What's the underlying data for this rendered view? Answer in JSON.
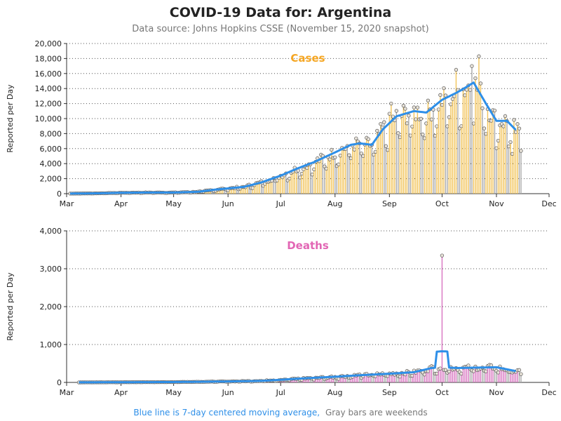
{
  "title": "COVID-19 Data for: Argentina",
  "subtitle": "Data source: Johns Hopkins CSSE (November 15, 2020 snapshot)",
  "footnote": {
    "blue_part": "Blue line is 7-day centered moving average,",
    "gray_part": "Gray bars are weekends"
  },
  "colors": {
    "cases": "#f5a623",
    "cases_bar": "#f2c45a",
    "deaths": "#e266b4",
    "deaths_bar": "#d874c0",
    "moving_average": "#2e8fe8",
    "weekend_bar": "#aaaaaa",
    "point_fill": "#e8e2d8",
    "grid": "#555555"
  },
  "chart_data": [
    {
      "type": "bar",
      "title": "Cases",
      "ylabel": "Reported per Day",
      "xlim": [
        "2020-03-01",
        "2020-12-01"
      ],
      "ylim": [
        0,
        20000
      ],
      "yticks": [
        "0",
        "2,000",
        "4,000",
        "6,000",
        "8,000",
        "10,000",
        "12,000",
        "14,000",
        "16,000",
        "18,000",
        "20,000"
      ],
      "xticks": [
        "Mar",
        "Apr",
        "May",
        "Jun",
        "Jul",
        "Aug",
        "Sep",
        "Oct",
        "Nov",
        "Dec"
      ],
      "grid": "horizontal dotted",
      "start_date": "2020-03-03",
      "anchors": [
        [
          "2020-03-03",
          10
        ],
        [
          "2020-03-20",
          50
        ],
        [
          "2020-04-01",
          120
        ],
        [
          "2020-04-15",
          150
        ],
        [
          "2020-05-01",
          150
        ],
        [
          "2020-05-15",
          250
        ],
        [
          "2020-05-25",
          550
        ],
        [
          "2020-06-01",
          700
        ],
        [
          "2020-06-10",
          900
        ],
        [
          "2020-06-20",
          1500
        ],
        [
          "2020-07-01",
          2400
        ],
        [
          "2020-07-10",
          3300
        ],
        [
          "2020-07-20",
          4200
        ],
        [
          "2020-08-01",
          5500
        ],
        [
          "2020-08-10",
          6500
        ],
        [
          "2020-08-15",
          6700
        ],
        [
          "2020-08-22",
          6500
        ],
        [
          "2020-08-28",
          8500
        ],
        [
          "2020-09-05",
          10300
        ],
        [
          "2020-09-15",
          11000
        ],
        [
          "2020-09-22",
          10800
        ],
        [
          "2020-10-01",
          12500
        ],
        [
          "2020-10-08",
          13300
        ],
        [
          "2020-10-12",
          13800
        ],
        [
          "2020-10-19",
          14800
        ],
        [
          "2020-10-26",
          12000
        ],
        [
          "2020-11-01",
          9700
        ],
        [
          "2020-11-07",
          9700
        ],
        [
          "2020-11-14",
          8000
        ]
      ],
      "annotated_points": [
        [
          "2020-10-22",
          18300
        ],
        [
          "2020-10-09",
          16500
        ],
        [
          "2020-10-18",
          17000
        ],
        [
          "2020-09-02",
          12000
        ],
        [
          "2020-11-10",
          5300
        ],
        [
          "2020-11-15",
          5700
        ]
      ],
      "moving_average_end": "2020-11-12"
    },
    {
      "type": "bar",
      "title": "Deaths",
      "ylabel": "Reported per Day",
      "xlim": [
        "2020-03-01",
        "2020-12-01"
      ],
      "ylim": [
        0,
        4000
      ],
      "yticks": [
        "0",
        "1,000",
        "2,000",
        "3,000",
        "4,000"
      ],
      "xticks": [
        "Mar",
        "Apr",
        "May",
        "Jun",
        "Jul",
        "Aug",
        "Sep",
        "Oct",
        "Nov",
        "Dec"
      ],
      "grid": "horizontal dotted",
      "start_date": "2020-03-08",
      "anchors": [
        [
          "2020-03-08",
          1
        ],
        [
          "2020-04-01",
          5
        ],
        [
          "2020-05-01",
          10
        ],
        [
          "2020-06-01",
          25
        ],
        [
          "2020-06-20",
          40
        ],
        [
          "2020-07-01",
          70
        ],
        [
          "2020-07-15",
          110
        ],
        [
          "2020-08-01",
          150
        ],
        [
          "2020-08-15",
          190
        ],
        [
          "2020-09-01",
          230
        ],
        [
          "2020-09-15",
          270
        ],
        [
          "2020-09-25",
          380
        ],
        [
          "2020-10-01",
          400
        ],
        [
          "2020-10-10",
          380
        ],
        [
          "2020-10-20",
          390
        ],
        [
          "2020-11-01",
          400
        ],
        [
          "2020-11-14",
          280
        ]
      ],
      "spike": [
        "2020-10-01",
        3350
      ],
      "moving_average_end": "2020-11-12"
    }
  ]
}
